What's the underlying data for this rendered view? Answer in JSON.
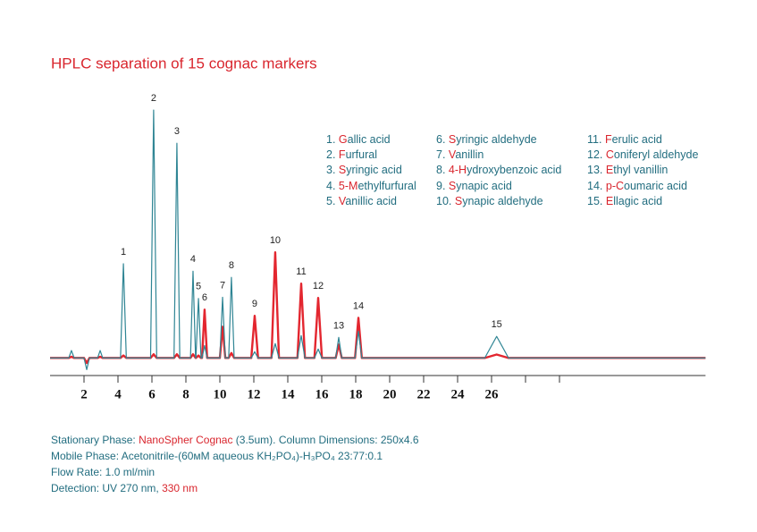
{
  "chart_data": {
    "type": "line",
    "title": "HPLC separation of 15 cognac markers",
    "title_color": "#d9262e",
    "text_color": "#236e80",
    "highlight_color": "#d9262e",
    "x": [
      0,
      1.1,
      1.26,
      1.42,
      2.0,
      2.16,
      2.32,
      2.8,
      2.95,
      3.1,
      4.15,
      4.32,
      4.49,
      5.92,
      6.1,
      6.28,
      7.3,
      7.47,
      7.64,
      8.27,
      8.42,
      8.57,
      8.59,
      8.74,
      8.89,
      8.95,
      9.1,
      9.25,
      10.0,
      10.16,
      10.32,
      10.52,
      10.68,
      10.84,
      11.85,
      12.05,
      12.25,
      13.04,
      13.26,
      13.48,
      14.57,
      14.79,
      15.01,
      15.57,
      15.79,
      16.01,
      16.82,
      17.0,
      17.18,
      17.96,
      18.16,
      18.36,
      25.6,
      26.3,
      27.0,
      38.6
    ],
    "series": [
      {
        "color": "#e3262f",
        "values": [
          0,
          0,
          0.5,
          0,
          0,
          -2,
          0,
          0,
          0.5,
          0,
          0,
          1,
          0,
          0,
          1.5,
          0,
          0,
          1.5,
          0,
          0,
          1.5,
          0,
          0,
          1,
          0,
          0,
          19.5,
          0,
          0,
          12.6,
          0,
          0,
          2,
          0,
          0,
          17,
          0,
          0,
          42.6,
          0,
          0,
          30,
          0,
          0,
          24.2,
          0,
          0,
          5.4,
          0,
          0,
          16.2,
          0,
          0,
          1.4,
          0,
          0
        ]
      },
      {
        "color": "#2f8594",
        "values": [
          0,
          0,
          3,
          0,
          0,
          -4.7,
          0,
          0,
          3,
          0,
          0,
          38,
          0,
          0,
          100,
          0,
          0,
          86.6,
          0,
          0,
          35,
          0,
          0,
          24,
          0,
          0,
          5,
          0,
          0,
          24.5,
          0,
          0,
          32.5,
          0,
          0,
          2.5,
          0,
          0,
          5.8,
          0,
          0,
          9,
          0,
          0,
          3.6,
          0,
          0,
          8.3,
          0,
          0,
          10.8,
          0,
          0,
          8.7,
          0,
          0
        ]
      }
    ],
    "xlim": [
      0,
      38.6
    ],
    "ylim": [
      -6,
      104
    ],
    "xticks": [
      2,
      4,
      6,
      8,
      10,
      12,
      14,
      16,
      18,
      20,
      22,
      24,
      26,
      {
        "value": 28,
        "label": null
      },
      {
        "value": 30,
        "label": null
      }
    ],
    "peak_labels": [
      {
        "text": "1",
        "x": 4.32
      },
      {
        "text": "2",
        "x": 6.1
      },
      {
        "text": "3",
        "x": 7.47
      },
      {
        "text": "4",
        "x": 8.42
      },
      {
        "text": "5",
        "x": 8.74
      },
      {
        "text": "6",
        "x": 9.1
      },
      {
        "text": "7",
        "x": 10.16
      },
      {
        "text": "8",
        "x": 10.68
      },
      {
        "text": "9",
        "x": 12.05
      },
      {
        "text": "10",
        "x": 13.26
      },
      {
        "text": "11",
        "x": 14.79
      },
      {
        "text": "12",
        "x": 15.79
      },
      {
        "text": "13",
        "x": 17.0
      },
      {
        "text": "14",
        "x": 18.16
      },
      {
        "text": "15",
        "x": 26.3
      }
    ],
    "compounds": [
      {
        "number": "1.",
        "highlight": "G",
        "rest": "allic acid"
      },
      {
        "number": "2.",
        "highlight": "F",
        "rest": "urfural"
      },
      {
        "number": "3.",
        "highlight": "S",
        "rest": "yringic acid"
      },
      {
        "number": "4.",
        "highlight": "5-M",
        "rest": "ethylfurfural"
      },
      {
        "number": "5.",
        "highlight": "V",
        "rest": "anillic acid"
      },
      {
        "number": "6.",
        "highlight": "S",
        "rest": "yringic aldehyde"
      },
      {
        "number": "7.",
        "highlight": "V",
        "rest": "anillin"
      },
      {
        "number": "8.",
        "highlight": "4-H",
        "rest": "ydroxybenzoic acid"
      },
      {
        "number": "9.",
        "highlight": "S",
        "rest": "ynapic acid"
      },
      {
        "number": "10.",
        "highlight": "S",
        "rest": "ynapic aldehyde"
      },
      {
        "number": "11.",
        "highlight": "F",
        "rest": "erulic acid"
      },
      {
        "number": "12.",
        "highlight": "C",
        "rest": "oniferyl aldehyde"
      },
      {
        "number": "13.",
        "highlight": "E",
        "rest": "thyl vanillin"
      },
      {
        "number": "14.",
        "highlight": "p-C",
        "rest": "oumaric acid"
      },
      {
        "number": "15.",
        "highlight": "E",
        "rest": "llagic acid"
      }
    ],
    "notes": [
      [
        {
          "text": "Stationary Phase: ",
          "color": "#236e80"
        },
        {
          "text": "NanoSpher Cognac",
          "color": "#d9262e"
        },
        {
          "text": " (3.5um). Column Dimensions: 250x4.6",
          "color": "#236e80"
        }
      ],
      [
        {
          "text": "Mobile Phase: Acetonitrile-(60мM aqueous KH₂PO₄)-H₃PO₄ 23:77:0.1",
          "color": "#236e80"
        }
      ],
      [
        {
          "text": "Flow Rate: 1.0 ml/min",
          "color": "#236e80"
        }
      ],
      [
        {
          "text": "Detection: UV 270 nm, ",
          "color": "#236e80"
        },
        {
          "text": "330 nm",
          "color": "#d9262e"
        }
      ]
    ]
  }
}
